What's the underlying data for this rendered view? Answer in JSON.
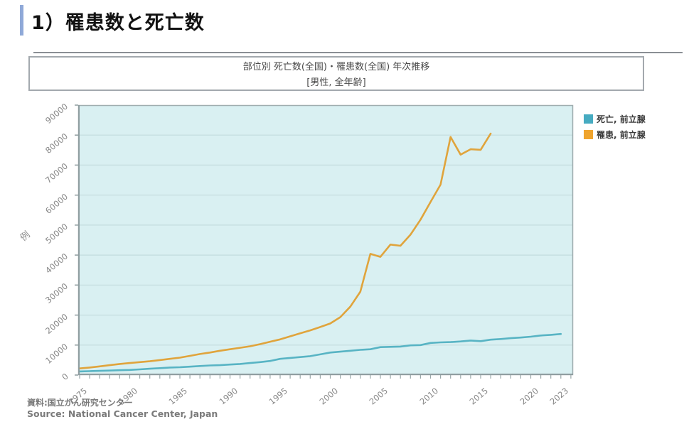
{
  "page": {
    "title": "1）罹患数と死亡数",
    "footer_line1": "資料:国立がん研究センター",
    "footer_line2": "Source: National Cancer Center, Japan"
  },
  "chart": {
    "title_line1": "部位別 死亡数(全国)・罹患数(全国) 年次推移",
    "title_line2": "[男性, 全年齢]",
    "y_axis_label": "例",
    "plot_bg_color": "#d9f0f2",
    "legend": [
      {
        "label": "死亡, 前立腺",
        "color": "#46abc1"
      },
      {
        "label": "罹患, 前立腺",
        "color": "#efa42d"
      }
    ]
  },
  "chart_data": {
    "type": "line",
    "title": "部位別 死亡数(全国)・罹患数(全国) 年次推移 [男性, 全年齢]",
    "xlabel": "",
    "ylabel": "例",
    "ylim": [
      0,
      90000
    ],
    "xlim": [
      1974.8,
      2024.8
    ],
    "grid": true,
    "legend_position": "outside-top-right",
    "y_ticks": [
      0,
      10000,
      20000,
      30000,
      40000,
      50000,
      60000,
      70000,
      80000,
      90000
    ],
    "x_ticks": [
      1975,
      1980,
      1985,
      1990,
      1995,
      2000,
      2005,
      2010,
      2015,
      2020,
      2023
    ],
    "series": [
      {
        "name": "死亡, 前立腺",
        "color": "#58b4c4",
        "x": [
          1975,
          1976,
          1977,
          1978,
          1979,
          1980,
          1981,
          1982,
          1983,
          1984,
          1985,
          1986,
          1987,
          1988,
          1989,
          1990,
          1991,
          1992,
          1993,
          1994,
          1995,
          1996,
          1997,
          1998,
          1999,
          2000,
          2001,
          2002,
          2003,
          2004,
          2005,
          2006,
          2007,
          2008,
          2009,
          2010,
          2011,
          2012,
          2013,
          2014,
          2015,
          2016,
          2017,
          2018,
          2019,
          2020,
          2021,
          2022,
          2023
        ],
        "values": [
          1200,
          1300,
          1400,
          1500,
          1600,
          1700,
          1900,
          2100,
          2300,
          2500,
          2600,
          2800,
          3000,
          3200,
          3300,
          3500,
          3700,
          4000,
          4300,
          4700,
          5400,
          5700,
          6000,
          6300,
          6900,
          7500,
          7800,
          8100,
          8400,
          8600,
          9300,
          9400,
          9500,
          9900,
          10000,
          10700,
          10900,
          11000,
          11200,
          11500,
          11300,
          11800,
          12000,
          12300,
          12500,
          12800,
          13200,
          13400,
          13700
        ]
      },
      {
        "name": "罹患, 前立腺",
        "color": "#e0a43c",
        "x": [
          1975,
          1976,
          1977,
          1978,
          1979,
          1980,
          1981,
          1982,
          1983,
          1984,
          1985,
          1986,
          1987,
          1988,
          1989,
          1990,
          1991,
          1992,
          1993,
          1994,
          1995,
          1996,
          1997,
          1998,
          1999,
          2000,
          2001,
          2002,
          2003,
          2004,
          2005,
          2006,
          2007,
          2008,
          2009,
          2010,
          2011,
          2012,
          2013,
          2014,
          2015,
          2016
        ],
        "values": [
          2200,
          2500,
          2900,
          3300,
          3700,
          4000,
          4300,
          4600,
          5000,
          5400,
          5800,
          6400,
          7000,
          7500,
          8100,
          8600,
          9100,
          9600,
          10300,
          11100,
          11900,
          12900,
          13900,
          14900,
          16000,
          17200,
          19300,
          22800,
          27800,
          40400,
          39400,
          43500,
          43100,
          46800,
          51800,
          57700,
          63500,
          79400,
          73500,
          75300,
          75100,
          80500
        ]
      }
    ]
  }
}
